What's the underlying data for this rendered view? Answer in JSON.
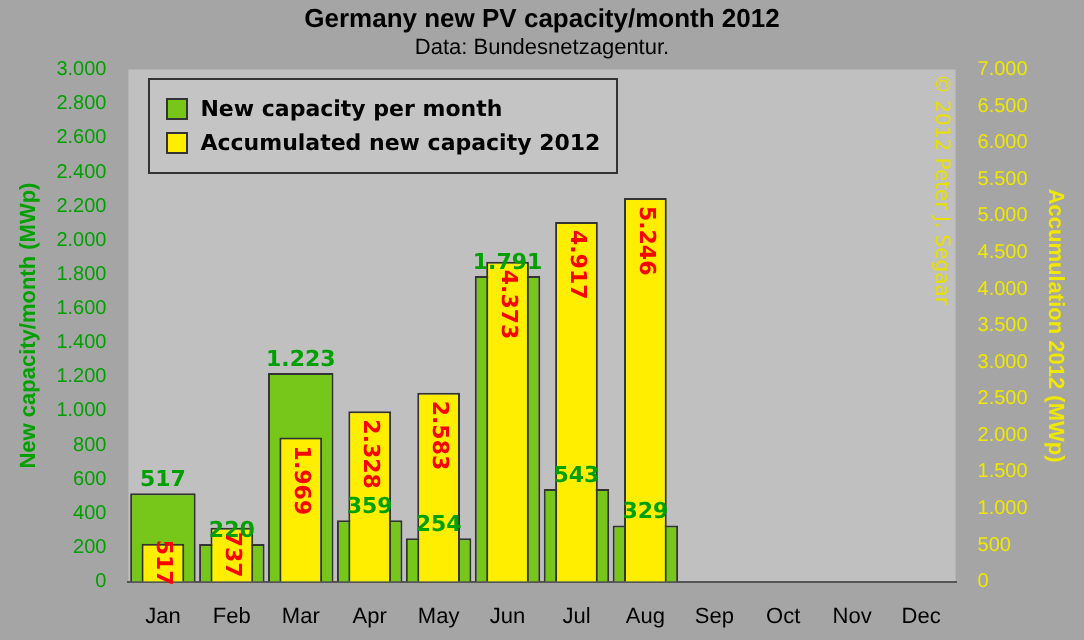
{
  "chart_data": {
    "type": "bar",
    "title": "Germany new PV capacity/month 2012",
    "subtitle": "Data: Bundesnetzagentur.",
    "ylabel": "New capacity/month (MWp)",
    "y2label": "Accumulation 2012 (MWp)",
    "categories": [
      "Jan",
      "Feb",
      "Mar",
      "Apr",
      "May",
      "Jun",
      "Jul",
      "Aug",
      "Sep",
      "Oct",
      "Nov",
      "Dec"
    ],
    "series": [
      {
        "name": "New capacity per month",
        "color": "#77c61a",
        "values": [
          517,
          220,
          1223,
          359,
          254,
          1791,
          543,
          329,
          null,
          null,
          null,
          null
        ],
        "value_labels": [
          "517",
          "220",
          "1.223",
          "359",
          "254",
          "1.791",
          "543",
          "329",
          null,
          null,
          null,
          null
        ]
      },
      {
        "name": "Accumulated new capacity 2012",
        "color": "#ffee00",
        "axis": "y2",
        "values": [
          517,
          737,
          1969,
          2328,
          2583,
          4373,
          4917,
          5246,
          null,
          null,
          null,
          null
        ],
        "value_labels": [
          "517",
          "737",
          "1.969",
          "2.328",
          "2.583",
          "4.373",
          "4.917",
          "5.246",
          null,
          null,
          null,
          null
        ]
      }
    ],
    "ylim": [
      0,
      3000
    ],
    "yticks": [
      {
        "value": 0,
        "label": "0"
      },
      {
        "value": 200,
        "label": "200"
      },
      {
        "value": 400,
        "label": "400"
      },
      {
        "value": 600,
        "label": "600"
      },
      {
        "value": 800,
        "label": "800"
      },
      {
        "value": 1000,
        "label": "1.000"
      },
      {
        "value": 1200,
        "label": "1.200"
      },
      {
        "value": 1400,
        "label": "1.400"
      },
      {
        "value": 1600,
        "label": "1.600"
      },
      {
        "value": 1800,
        "label": "1.800"
      },
      {
        "value": 2000,
        "label": "2.000"
      },
      {
        "value": 2200,
        "label": "2.200"
      },
      {
        "value": 2400,
        "label": "2.400"
      },
      {
        "value": 2600,
        "label": "2.600"
      },
      {
        "value": 2800,
        "label": "2.800"
      },
      {
        "value": 3000,
        "label": "3.000"
      }
    ],
    "y2lim": [
      0,
      7000
    ],
    "y2ticks": [
      {
        "value": 0,
        "label": "0"
      },
      {
        "value": 500,
        "label": "500"
      },
      {
        "value": 1000,
        "label": "1.000"
      },
      {
        "value": 1500,
        "label": "1.500"
      },
      {
        "value": 2000,
        "label": "2.000"
      },
      {
        "value": 2500,
        "label": "2.500"
      },
      {
        "value": 3000,
        "label": "3.000"
      },
      {
        "value": 3500,
        "label": "3.500"
      },
      {
        "value": 4000,
        "label": "4.000"
      },
      {
        "value": 4500,
        "label": "4.500"
      },
      {
        "value": 5000,
        "label": "5.000"
      },
      {
        "value": 5500,
        "label": "5.500"
      },
      {
        "value": 6000,
        "label": "6.000"
      },
      {
        "value": 6500,
        "label": "6.500"
      },
      {
        "value": 7000,
        "label": "7.000"
      }
    ],
    "annotations": [
      "© 2012 Peter J. Segaar"
    ],
    "grid": false,
    "legend": "top left"
  }
}
